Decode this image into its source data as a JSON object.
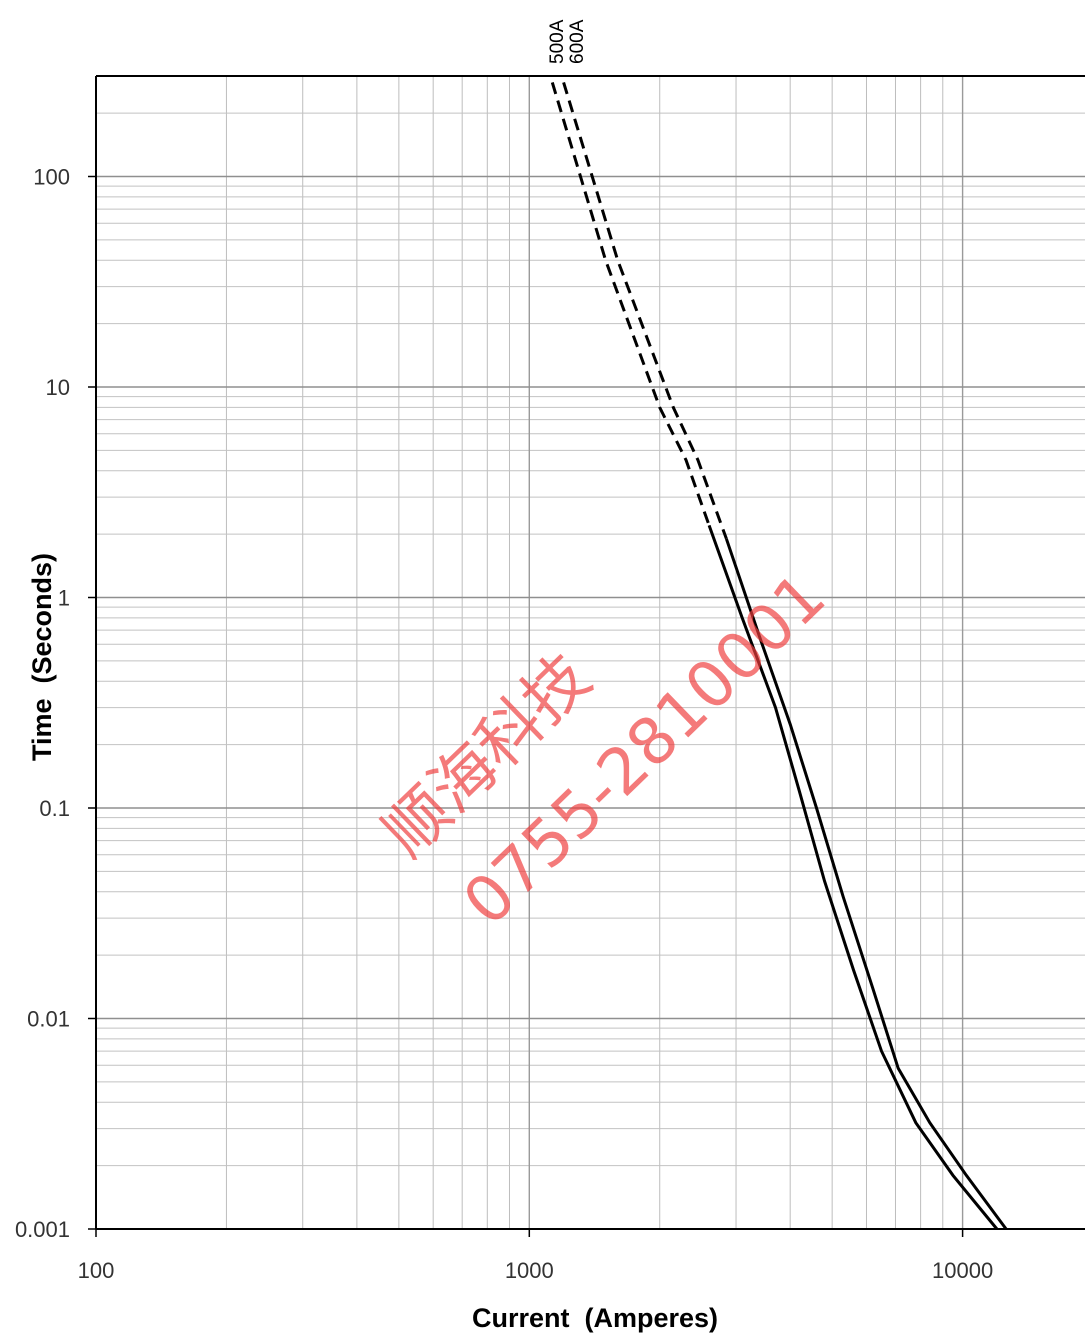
{
  "chart_data": {
    "type": "line",
    "title": "",
    "xlabel": "Current  (Amperes)",
    "ylabel": "Time  (Seconds)",
    "x_scale": "log",
    "y_scale": "log",
    "xlim": [
      100,
      25000
    ],
    "ylim": [
      0.001,
      300
    ],
    "grid": true,
    "x_ticks": [
      {
        "value": 100,
        "label": "100"
      },
      {
        "value": 1000,
        "label": "1000"
      },
      {
        "value": 10000,
        "label": "10000"
      }
    ],
    "y_ticks": [
      {
        "value": 100,
        "label": "100"
      },
      {
        "value": 10,
        "label": "10"
      },
      {
        "value": 1,
        "label": "1"
      },
      {
        "value": 0.1,
        "label": "0.1"
      },
      {
        "value": 0.01,
        "label": "0.01"
      },
      {
        "value": 0.001,
        "label": "0.001"
      }
    ],
    "series": [
      {
        "name": "500A",
        "color": "#000000",
        "dashed_points": [
          [
            1130,
            280
          ],
          [
            1500,
            40
          ],
          [
            2000,
            8
          ],
          [
            2300,
            4.5
          ],
          [
            2600,
            2.2
          ]
        ],
        "solid_points": [
          [
            2600,
            2.2
          ],
          [
            3100,
            0.8
          ],
          [
            3700,
            0.3
          ],
          [
            4200,
            0.12
          ],
          [
            4800,
            0.045
          ],
          [
            5600,
            0.017
          ],
          [
            6500,
            0.007
          ],
          [
            7800,
            0.0032
          ],
          [
            9500,
            0.0018
          ],
          [
            12000,
            0.001
          ]
        ]
      },
      {
        "name": "600A",
        "color": "#000000",
        "dashed_points": [
          [
            1200,
            280
          ],
          [
            1600,
            40
          ],
          [
            2150,
            8
          ],
          [
            2450,
            4.5
          ],
          [
            2850,
            1.9
          ]
        ],
        "solid_points": [
          [
            2850,
            1.9
          ],
          [
            3400,
            0.65
          ],
          [
            4000,
            0.25
          ],
          [
            4600,
            0.1
          ],
          [
            5300,
            0.038
          ],
          [
            6200,
            0.014
          ],
          [
            7100,
            0.0058
          ],
          [
            8400,
            0.0032
          ],
          [
            10200,
            0.0018
          ],
          [
            12600,
            0.001
          ]
        ]
      }
    ]
  },
  "watermark": {
    "line1": "顺海科技",
    "line2": "0755-2810001",
    "color": "#ef3b3b"
  }
}
